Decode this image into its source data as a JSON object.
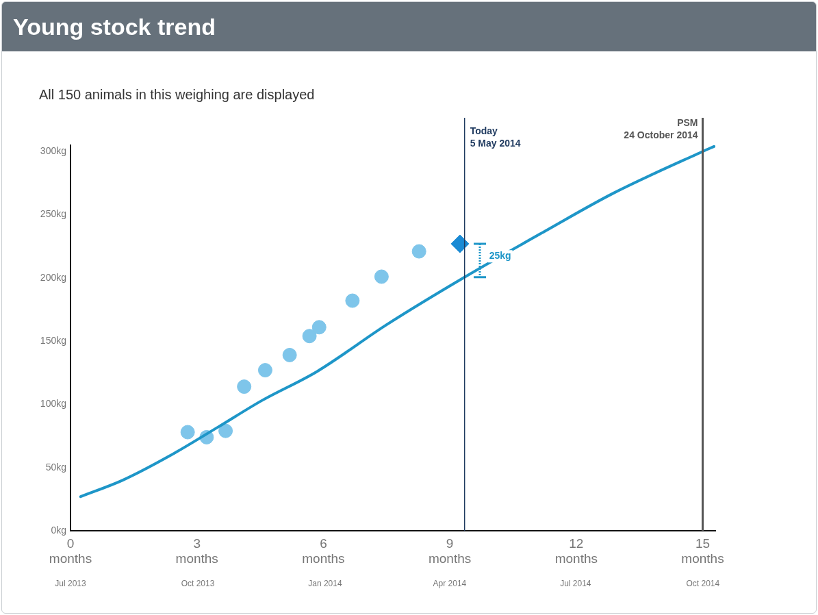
{
  "chart_data": {
    "type": "scatter",
    "title": "Young stock trend",
    "subtitle": "All 150 animals in this weighing are displayed",
    "xlim": [
      0,
      15.3
    ],
    "ylim": [
      0,
      305
    ],
    "xticks": [
      {
        "value": 0,
        "label": "0\nmonths"
      },
      {
        "value": 3,
        "label": "3\nmonths"
      },
      {
        "value": 6,
        "label": "6\nmonths"
      },
      {
        "value": 9,
        "label": "9\nmonths"
      },
      {
        "value": 12,
        "label": "12\nmonths"
      },
      {
        "value": 15,
        "label": "15\nmonths"
      }
    ],
    "x2lim": [
      "2013-07-24",
      "2014-11-02"
    ],
    "x2ticks": [
      {
        "value": "2013-07-24",
        "label": "Jul 2013"
      },
      {
        "value": "2013-10-24",
        "label": "Oct 2013"
      },
      {
        "value": "2014-01-24",
        "label": "Jan 2014"
      },
      {
        "value": "2014-04-24",
        "label": "Apr 2014"
      },
      {
        "value": "2014-07-24",
        "label": "Jul 2014"
      },
      {
        "value": "2014-10-24",
        "label": "Oct 2014"
      }
    ],
    "yticks": [
      {
        "value": 0,
        "label": "0kg"
      },
      {
        "value": 50,
        "label": "50kg"
      },
      {
        "value": 100,
        "label": "100kg"
      },
      {
        "value": 150,
        "label": "150kg"
      },
      {
        "value": 200,
        "label": "200kg"
      },
      {
        "value": 250,
        "label": "250kg"
      },
      {
        "value": 300,
        "label": "300kg"
      }
    ],
    "grid": false,
    "legend": false,
    "series": [
      {
        "type": "line",
        "color": "#1e96c8",
        "marker": "none",
        "x": [
          0.24,
          1.24,
          2.34,
          3.5,
          4.54,
          5.85,
          7.5,
          9.37,
          11.26,
          12.88,
          15.0,
          15.27
        ],
        "values": [
          27,
          40,
          59,
          82,
          103,
          126,
          163,
          201,
          237,
          267,
          300,
          304
        ]
      },
      {
        "color": "#7ec5ea",
        "marker": "circle",
        "x": [
          2.78,
          3.23,
          3.68,
          4.12,
          4.62,
          5.2,
          5.67,
          5.9,
          6.69,
          7.38,
          8.27
        ],
        "values": [
          78,
          74,
          79,
          114,
          127,
          139,
          154,
          161,
          182,
          201,
          221
        ]
      },
      {
        "color": "#1a8ad4",
        "marker": "diamond",
        "x": [
          9.24
        ],
        "values": [
          227
        ]
      }
    ],
    "ref_lines": [
      {
        "axis": "x",
        "value": 9.35,
        "label": "Today\n5 May 2014",
        "color": "#1f3a5f"
      },
      {
        "axis": "x",
        "value": 15,
        "label": "PSM\n24 October 2014",
        "color": "#555555"
      }
    ],
    "annotations": [
      "25kg"
    ]
  }
}
